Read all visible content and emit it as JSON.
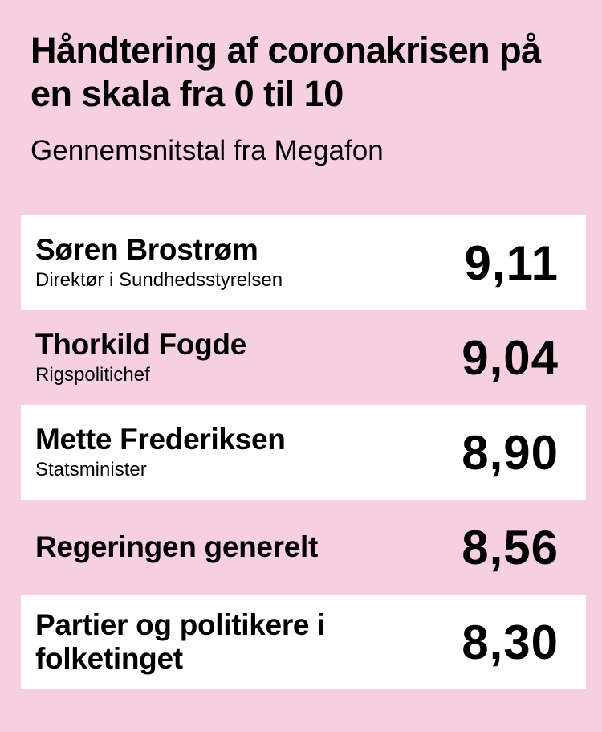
{
  "title": "Håndtering af coronakrisen på en skala fra 0 til 10",
  "subtitle": "Gennemsnitstal fra Megafon",
  "colors": {
    "background": "#f6cfe0",
    "row_highlight": "#ffffff",
    "text": "#000000"
  },
  "chart_data": {
    "type": "table",
    "title": "Håndtering af coronakrisen på en skala fra 0 til 10",
    "subtitle": "Gennemsnitstal fra Megafon",
    "rows": [
      {
        "name": "Søren Brostrøm",
        "role": "Direktør i Sundhedsstyrelsen",
        "value": 9.11,
        "value_label": "9,11"
      },
      {
        "name": "Thorkild Fogde",
        "role": "Rigspolitichef",
        "value": 9.04,
        "value_label": "9,04"
      },
      {
        "name": "Mette Frederiksen",
        "role": "Statsminister",
        "value": 8.9,
        "value_label": "8,90"
      },
      {
        "name": "Regeringen generelt",
        "role": "",
        "value": 8.56,
        "value_label": "8,56"
      },
      {
        "name": "Partier og politikere i folketinget",
        "role": "",
        "value": 8.3,
        "value_label": "8,30"
      }
    ]
  }
}
